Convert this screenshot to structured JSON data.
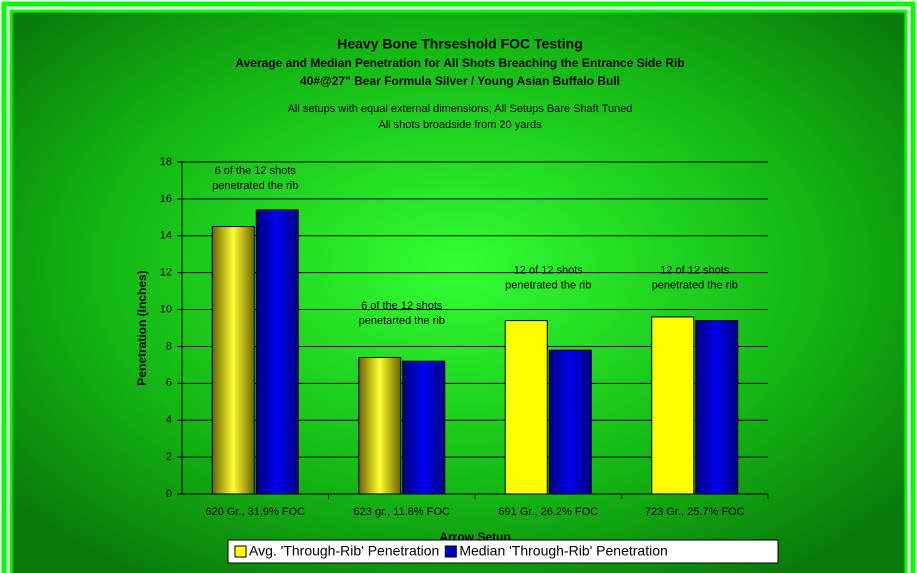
{
  "chart_data": {
    "type": "bar",
    "title": "Heavy Bone Thrseshold FOC Testing",
    "subtitle": [
      "Average and Median Penetration for All Shots Breaching the Entrance Side Rib",
      "40#@27\" Bear Formula Silver / Young Asian Buffalo Bull"
    ],
    "notes": [
      "All setups with equal external dimensions; All Setups Bare Shaft Tuned",
      "All shots broadside from 20 yards"
    ],
    "x_label": "Arrow Setup",
    "y_label": "Penetration (Inches)",
    "categories": [
      "620 Gr., 31.9% FOC",
      "623 gr., 11.8% FOC",
      "691 Gr., 26.2% FOC",
      "723 Gr., 25.7% FOC"
    ],
    "series": [
      {
        "name": "Avg. 'Through-Rib' Penetration",
        "color": "#ffff00",
        "point_colors": [
          "#8b8000",
          "#8b8000",
          "#ffff00",
          "#ffff00"
        ],
        "values": [
          14.5,
          7.4,
          9.4,
          9.6
        ]
      },
      {
        "name": "Median 'Through-Rib' Penetration",
        "color": "#0000cc",
        "values": [
          15.4,
          7.2,
          7.8,
          9.4
        ]
      }
    ],
    "annotations": [
      {
        "lines": [
          "6 of the 12 shots",
          "penetrated the rib"
        ],
        "category": 0,
        "y": 17.5
      },
      {
        "lines": [
          "6 of the 12 shots",
          "penetarted the rib"
        ],
        "category": 1,
        "y": 10.2
      },
      {
        "lines": [
          "12 of 12 shots",
          "penetrated the rib"
        ],
        "category": 2,
        "y": 12.1
      },
      {
        "lines": [
          "12 of 12 shots",
          "penetrated the rib"
        ],
        "category": 3,
        "y": 12.1
      }
    ],
    "ylim": [
      0,
      18
    ],
    "yticks": [
      0,
      2,
      4,
      6,
      8,
      10,
      12,
      14,
      16,
      18
    ],
    "grid": true,
    "legend": "bottom"
  }
}
